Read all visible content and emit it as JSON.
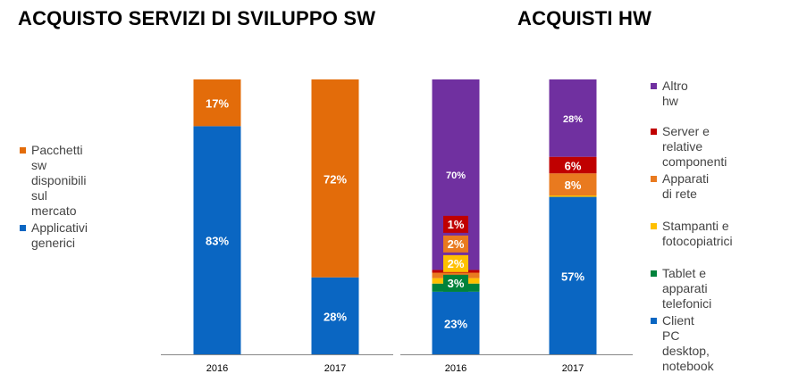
{
  "colors": {
    "blue": "#0a66c2",
    "orange": "#e36c0a",
    "purple": "#7030a0",
    "red": "#c00000",
    "orange_hw": "#e97a1f",
    "yellow": "#ffc000",
    "green": "#00823b",
    "axis": "#888888"
  },
  "chart_data": [
    {
      "type": "bar",
      "stacked": true,
      "title": "ACQUISTO SERVIZI DI SVILUPPO SW",
      "categories": [
        "2016",
        "2017"
      ],
      "ylim": [
        0,
        100
      ],
      "legend_position": "left",
      "series": [
        {
          "name": "Applicativi generici",
          "color": "blue",
          "values": [
            83,
            28
          ],
          "labels": [
            "83%",
            "28%"
          ]
        },
        {
          "name": "Pacchetti sw disponibili sul mercato",
          "color": "orange",
          "values": [
            17,
            72
          ],
          "labels": [
            "17%",
            "72%"
          ]
        }
      ]
    },
    {
      "type": "bar",
      "stacked": true,
      "title": "ACQUISTI HW",
      "categories": [
        "2016",
        "2017"
      ],
      "ylim": [
        0,
        100
      ],
      "legend_position": "right",
      "series": [
        {
          "name": "Client PC desktop, notebook",
          "color": "blue",
          "values": [
            23,
            57
          ],
          "labels": [
            "23%",
            "57%"
          ]
        },
        {
          "name": "Tablet e apparati telefonici",
          "color": "green",
          "values": [
            3,
            0
          ],
          "labels": [
            "3%",
            ""
          ]
        },
        {
          "name": "Stampanti e fotocopiatrici",
          "color": "yellow",
          "values": [
            2,
            0.5
          ],
          "labels": [
            "2%",
            ""
          ]
        },
        {
          "name": "Apparati di rete",
          "color": "orange_hw",
          "values": [
            2,
            8
          ],
          "labels": [
            "2%",
            "8%"
          ]
        },
        {
          "name": "Server e relative componenti",
          "color": "red",
          "values": [
            1,
            6
          ],
          "labels": [
            "1%",
            "6%"
          ]
        },
        {
          "name": "Altro hw",
          "color": "purple",
          "values": [
            70,
            28
          ],
          "labels": [
            "70%",
            "28%"
          ]
        }
      ]
    }
  ],
  "legends": {
    "sw": [
      {
        "line1": "Pacchetti sw",
        "line2": "disponibili sul",
        "line3": "mercato",
        "color": "orange"
      },
      {
        "line1": "Applicativi generici",
        "line2": "",
        "line3": "",
        "color": "blue"
      }
    ],
    "hw": [
      {
        "line1": "Altro hw",
        "line2": "",
        "color": "purple"
      },
      {
        "line1": "Server e relative",
        "line2": "componenti",
        "color": "red"
      },
      {
        "line1": "Apparati di rete",
        "line2": "",
        "color": "orange_hw"
      },
      {
        "line1": "Stampanti e",
        "line2": "fotocopiatrici",
        "color": "yellow"
      },
      {
        "line1": "Tablet e apparati",
        "line2": "telefonici",
        "color": "green"
      },
      {
        "line1": "Client PC desktop,",
        "line2": "notebook",
        "color": "blue"
      }
    ]
  }
}
